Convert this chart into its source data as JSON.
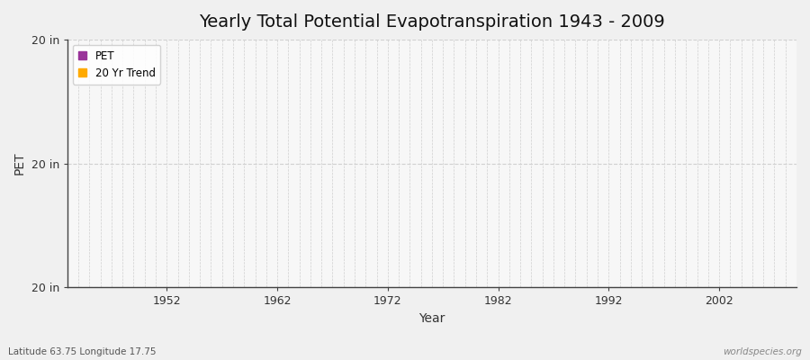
{
  "title": "Yearly Total Potential Evapotranspiration 1943 - 2009",
  "xlabel": "Year",
  "ylabel": "PET",
  "y_tick_labels": [
    "20 in",
    "20 in",
    "20 in"
  ],
  "y_tick_positions": [
    0.0,
    0.5,
    1.0
  ],
  "x_tick_positions": [
    1952,
    1962,
    1972,
    1982,
    1992,
    2002
  ],
  "x_lim": [
    1943,
    2009
  ],
  "y_lim": [
    0.0,
    1.0
  ],
  "legend_labels": [
    "PET",
    "20 Yr Trend"
  ],
  "legend_colors": [
    "#993399",
    "#ffaa00"
  ],
  "figure_bg_color": "#f0f0f0",
  "plot_bg_color": "#f7f7f7",
  "grid_color": "#d0d0d0",
  "spine_color": "#444444",
  "title_fontsize": 14,
  "axis_label_fontsize": 10,
  "tick_fontsize": 9,
  "footer_left": "Latitude 63.75 Longitude 17.75",
  "footer_right": "worldspecies.org"
}
